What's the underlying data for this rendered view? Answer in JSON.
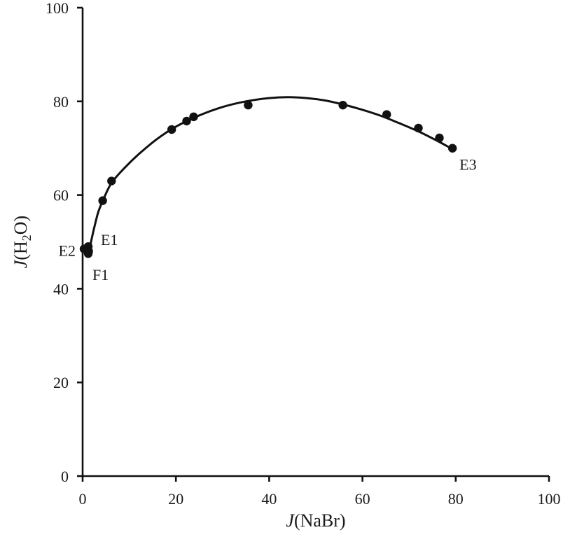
{
  "chart_data": {
    "type": "scatter",
    "xlabel_italic": "J",
    "xlabel_rest": "(NaBr)",
    "ylabel_italic": "J",
    "ylabel_prefix": "(H",
    "ylabel_sub": "2",
    "ylabel_suffix": "O)",
    "xlim": [
      0,
      100
    ],
    "ylim": [
      0,
      100
    ],
    "x_ticks": [
      0,
      20,
      40,
      60,
      80,
      100
    ],
    "y_ticks": [
      0,
      20,
      40,
      60,
      80,
      100
    ],
    "x_tick_labels": [
      "0",
      "20",
      "40",
      "60",
      "80",
      "100"
    ],
    "y_tick_labels": [
      "0",
      "20",
      "40",
      "60",
      "80",
      "100"
    ],
    "grid": false,
    "series": [
      {
        "points": [
          {
            "x": 0.3,
            "y": 48.5
          },
          {
            "x": 1.2,
            "y": 49.0
          },
          {
            "x": 1.3,
            "y": 48.0
          },
          {
            "x": 1.2,
            "y": 47.5
          },
          {
            "x": 4.3,
            "y": 58.8
          },
          {
            "x": 6.2,
            "y": 63.0
          },
          {
            "x": 19.1,
            "y": 74.0
          },
          {
            "x": 22.3,
            "y": 75.8
          },
          {
            "x": 23.8,
            "y": 76.7
          },
          {
            "x": 35.5,
            "y": 79.2
          },
          {
            "x": 55.8,
            "y": 79.2
          },
          {
            "x": 65.2,
            "y": 77.2
          },
          {
            "x": 72.0,
            "y": 74.3
          },
          {
            "x": 76.5,
            "y": 72.2
          },
          {
            "x": 79.3,
            "y": 70.0
          }
        ]
      }
    ],
    "fit_curve": [
      {
        "x": 1.3,
        "y": 47.5
      },
      {
        "x": 1.8,
        "y": 50.0
      },
      {
        "x": 2.6,
        "y": 53.5
      },
      {
        "x": 3.4,
        "y": 56.5
      },
      {
        "x": 4.5,
        "y": 59.2
      },
      {
        "x": 6.2,
        "y": 62.6
      },
      {
        "x": 9.0,
        "y": 65.8
      },
      {
        "x": 12.0,
        "y": 68.7
      },
      {
        "x": 16.0,
        "y": 72.0
      },
      {
        "x": 20.0,
        "y": 74.6
      },
      {
        "x": 25.0,
        "y": 77.0
      },
      {
        "x": 30.0,
        "y": 78.8
      },
      {
        "x": 35.0,
        "y": 80.0
      },
      {
        "x": 40.0,
        "y": 80.7
      },
      {
        "x": 44.0,
        "y": 80.9
      },
      {
        "x": 48.0,
        "y": 80.7
      },
      {
        "x": 52.0,
        "y": 80.2
      },
      {
        "x": 56.0,
        "y": 79.3
      },
      {
        "x": 60.0,
        "y": 78.2
      },
      {
        "x": 64.0,
        "y": 76.9
      },
      {
        "x": 68.0,
        "y": 75.3
      },
      {
        "x": 72.0,
        "y": 73.6
      },
      {
        "x": 76.0,
        "y": 71.6
      },
      {
        "x": 79.3,
        "y": 69.8
      }
    ],
    "annotations": [
      {
        "text": "E1",
        "x": 1.2,
        "y": 49.0
      },
      {
        "text": "E2",
        "x": 0.3,
        "y": 48.5
      },
      {
        "text": "F1",
        "x": 1.2,
        "y": 47.5
      },
      {
        "text": "E3",
        "x": 79.3,
        "y": 70.0
      }
    ]
  }
}
